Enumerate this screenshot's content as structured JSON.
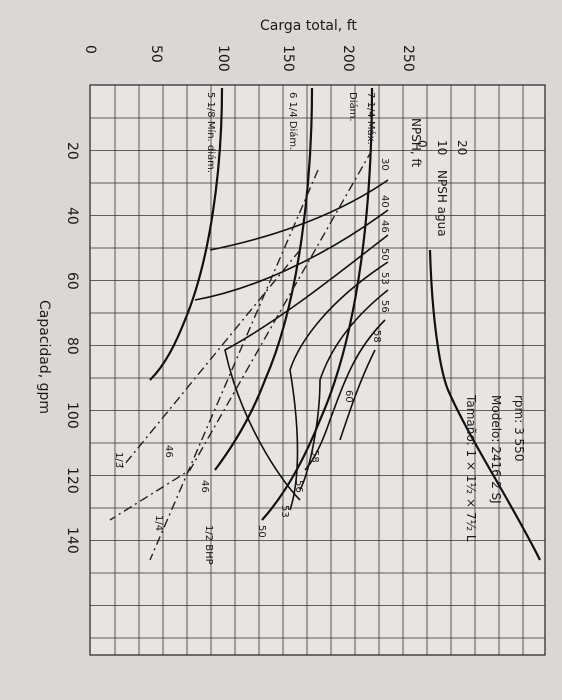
{
  "axis": {
    "title": "Carga total, ft",
    "head_ticks": [
      "250",
      "200",
      "150",
      "100",
      "50",
      "0"
    ],
    "capacity_title": "Capacidad, gpm",
    "capacity_ticks": [
      "20",
      "40",
      "60",
      "80",
      "100",
      "120",
      "140"
    ]
  },
  "info": [
    "rpm: 3 550",
    "Modelo: 2416-2 SJ",
    "Tamaño: 1 × 1½ × 7½ L"
  ],
  "npsh": {
    "title": "NPSH, ft",
    "ticks": [
      "0",
      "10",
      "20"
    ],
    "curve_label": "NPSH agua"
  },
  "diameters": [
    "7 1/4 Máx.",
    "Diám.",
    "6 1/4 Diám.",
    "5 1/8 Mín. diám."
  ],
  "efficiency_labels": [
    "30",
    "40",
    "46",
    "50",
    "53",
    "56",
    "58",
    "60",
    "58",
    "56",
    "53",
    "50",
    "46",
    "46"
  ],
  "bhp_labels": [
    "1/2 BHP",
    "1/3",
    "1/4"
  ]
}
